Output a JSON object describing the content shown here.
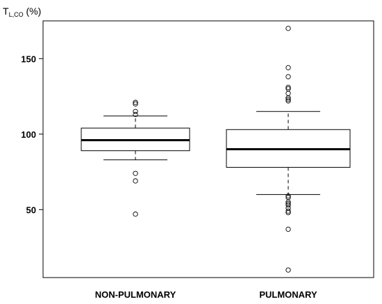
{
  "chart_data": {
    "type": "box",
    "ylabel": {
      "main": "T",
      "subscript": "L,CO",
      "unit": " (%)"
    },
    "yticks": [
      50,
      100,
      150
    ],
    "ylim": [
      5,
      175
    ],
    "grid": false,
    "categories": [
      "NON-PULMONARY",
      "PULMONARY"
    ],
    "boxes": [
      {
        "category": "NON-PULMONARY",
        "whisker_low": 83,
        "q1": 89,
        "median": 96,
        "q3": 104,
        "whisker_high": 112,
        "outliers": [
          121,
          120,
          115,
          113,
          74,
          69,
          47
        ]
      },
      {
        "category": "PULMONARY",
        "whisker_low": 60,
        "q1": 78,
        "median": 90,
        "q3": 103,
        "whisker_high": 115,
        "outliers": [
          170,
          144,
          138,
          131,
          130,
          127,
          124,
          123,
          122,
          59,
          58,
          55,
          54,
          53,
          51,
          49,
          48,
          37,
          10
        ]
      }
    ]
  }
}
